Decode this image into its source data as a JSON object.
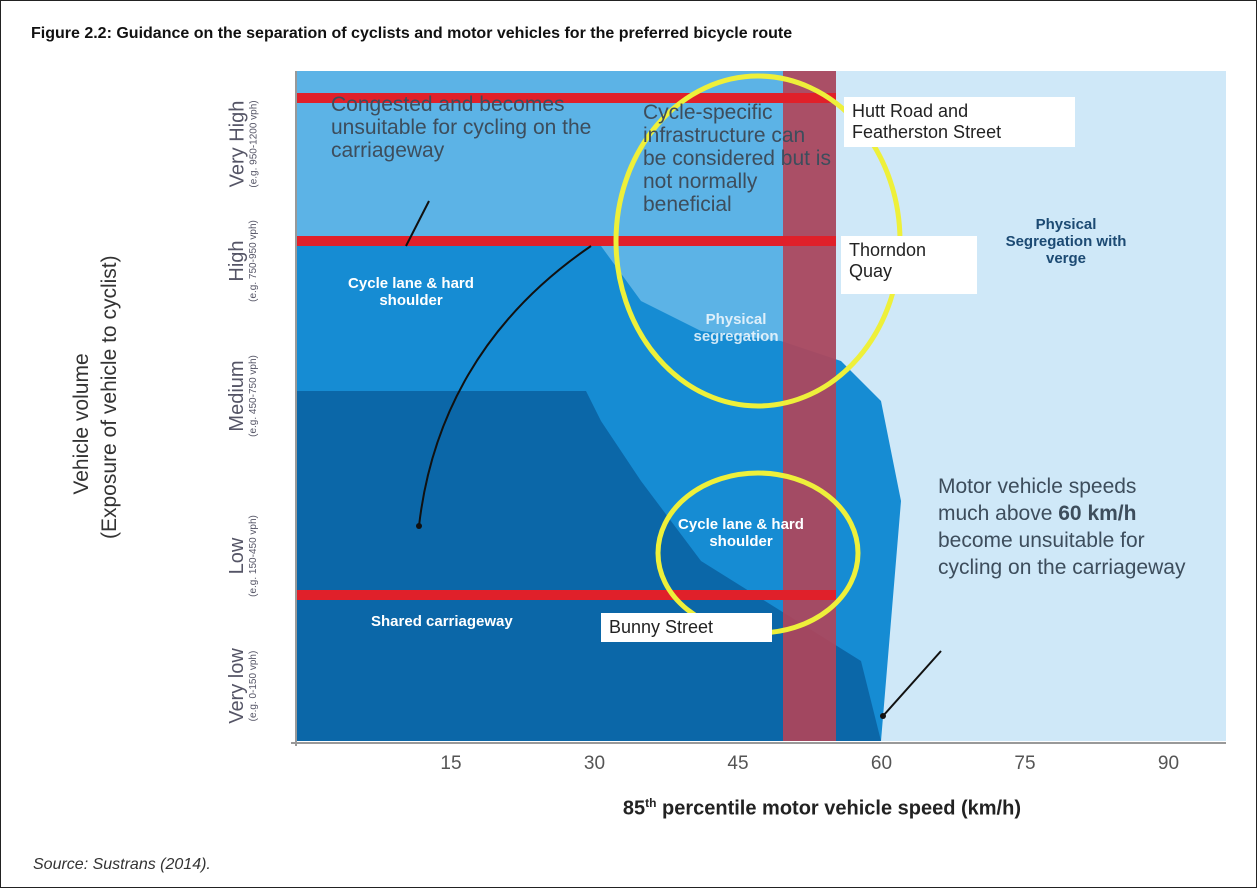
{
  "title": "Figure 2.2:  Guidance on the separation of cyclists and motor vehicles for the preferred bicycle route",
  "y_axis": {
    "title": "Vehicle volume",
    "subtitle": "(Exposure of vehicle to cyclist)",
    "levels": [
      {
        "name": "Very High",
        "range": "(e.g. 950-1200 vph)"
      },
      {
        "name": "High",
        "range": "(e.g. 750-950 vph)"
      },
      {
        "name": "Medium",
        "range": "(e.g. 450-750 vph)"
      },
      {
        "name": "Low",
        "range": "(e.g. 150-450 vph)"
      },
      {
        "name": "Very low",
        "range": "(e.g. 0-150 vph)"
      }
    ]
  },
  "x_axis": {
    "ticks": [
      "15",
      "30",
      "45",
      "60",
      "75",
      "90"
    ],
    "label_number": "85",
    "label_sup": "th",
    "label_rest": " percentile motor vehicle speed (km/h)"
  },
  "annotations": {
    "congested": "Congested and becomes unsuitable for cycling on the carriageway",
    "cycle_specific": "Cycle-specific infrastructure can be considered but is not normally beneficial",
    "segregation_verge": "Physical Segregation with verge",
    "cycle_lane_left": "Cycle lane & hard shoulder",
    "physical_segregation": "Physical segregation",
    "cycle_lane_center": "Cycle lane & hard shoulder",
    "shared": "Shared carriageway",
    "speeds_pre": "Motor vehicle speeds much above ",
    "speeds_bold": "60 km/h",
    "speeds_post": " become unsuitable for cycling on the carriageway"
  },
  "streets": [
    "Hutt Road and Featherston Street",
    "Thorndon Quay",
    "Bunny Street"
  ],
  "source": "Source: Sustrans (2014)."
}
